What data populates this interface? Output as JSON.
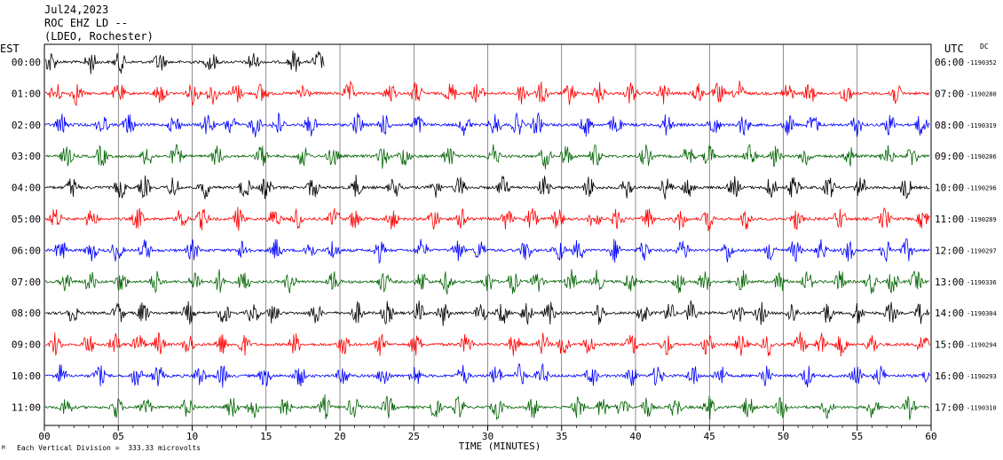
{
  "header": {
    "date": "Jul24,2023",
    "station": "ROC EHZ LD --",
    "network": "(LDEO, Rochester)"
  },
  "left_zone": "EST",
  "right_zone": "UTC",
  "dc_label": "DC",
  "footer": {
    "scale_note": "Each Vertical Division =  333.33 microvolts",
    "logo_mark": "M"
  },
  "colors": {
    "cycle": [
      "#000000",
      "#ff0000",
      "#0000ff",
      "#006400"
    ],
    "grid": "#000000"
  },
  "chart_data": {
    "type": "line",
    "xlabel": "TIME (MINUTES)",
    "xlim": [
      0,
      60
    ],
    "x_ticks": [
      "00",
      "05",
      "10",
      "15",
      "20",
      "25",
      "30",
      "35",
      "40",
      "45",
      "50",
      "55",
      "60"
    ],
    "rows": [
      {
        "est": "00:00",
        "utc": "06:00",
        "dc": "-1190352",
        "color": "#000000",
        "end_minute": 19
      },
      {
        "est": "01:00",
        "utc": "07:00",
        "dc": "-1190280",
        "color": "#ff0000",
        "end_minute": 60
      },
      {
        "est": "02:00",
        "utc": "08:00",
        "dc": "-1190319",
        "color": "#0000ff",
        "end_minute": 60
      },
      {
        "est": "03:00",
        "utc": "09:00",
        "dc": "-1190286",
        "color": "#006400",
        "end_minute": 60
      },
      {
        "est": "04:00",
        "utc": "10:00",
        "dc": "-1190296",
        "color": "#000000",
        "end_minute": 60
      },
      {
        "est": "05:00",
        "utc": "11:00",
        "dc": "-1190289",
        "color": "#ff0000",
        "end_minute": 60
      },
      {
        "est": "06:00",
        "utc": "12:00",
        "dc": "-1190297",
        "color": "#0000ff",
        "end_minute": 60
      },
      {
        "est": "07:00",
        "utc": "13:00",
        "dc": "-1190336",
        "color": "#006400",
        "end_minute": 60
      },
      {
        "est": "08:00",
        "utc": "14:00",
        "dc": "-1190304",
        "color": "#000000",
        "end_minute": 60
      },
      {
        "est": "09:00",
        "utc": "15:00",
        "dc": "-1190294",
        "color": "#ff0000",
        "end_minute": 60
      },
      {
        "est": "10:00",
        "utc": "16:00",
        "dc": "-1190293",
        "color": "#0000ff",
        "end_minute": 60
      },
      {
        "est": "11:00",
        "utc": "17:00",
        "dc": "-1190310",
        "color": "#006400",
        "end_minute": 60
      }
    ]
  }
}
